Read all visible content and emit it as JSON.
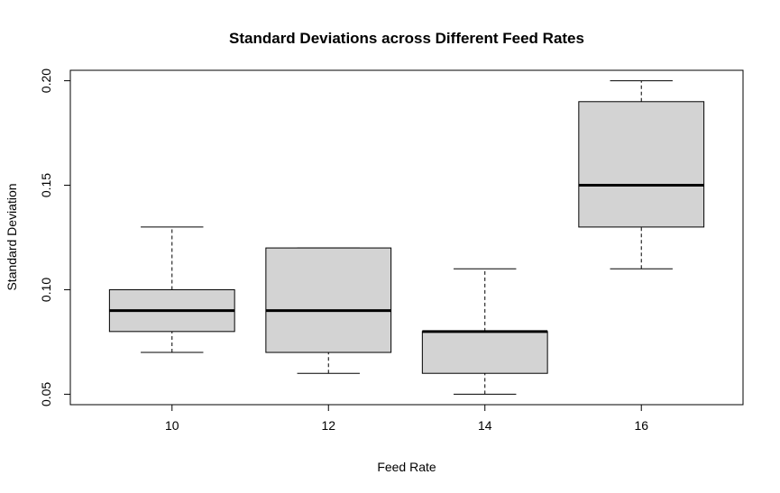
{
  "chart_data": {
    "type": "boxplot",
    "title": "Standard Deviations across Different Feed Rates",
    "xlabel": "Feed Rate",
    "ylabel": "Standard Deviation",
    "categories": [
      "10",
      "12",
      "14",
      "16"
    ],
    "boxes": [
      {
        "category": "10",
        "min": 0.07,
        "q1": 0.08,
        "median": 0.09,
        "q3": 0.1,
        "max": 0.13
      },
      {
        "category": "12",
        "min": 0.06,
        "q1": 0.07,
        "median": 0.09,
        "q3": 0.12,
        "max": 0.12
      },
      {
        "category": "14",
        "min": 0.05,
        "q1": 0.06,
        "median": 0.08,
        "q3": 0.08,
        "max": 0.11
      },
      {
        "category": "16",
        "min": 0.11,
        "q1": 0.13,
        "median": 0.15,
        "q3": 0.19,
        "max": 0.2
      }
    ],
    "yticks": [
      "0.05",
      "0.10",
      "0.15",
      "0.20"
    ],
    "ylim": [
      0.045,
      0.205
    ],
    "box_fill": "#d3d3d3",
    "grid": false
  }
}
